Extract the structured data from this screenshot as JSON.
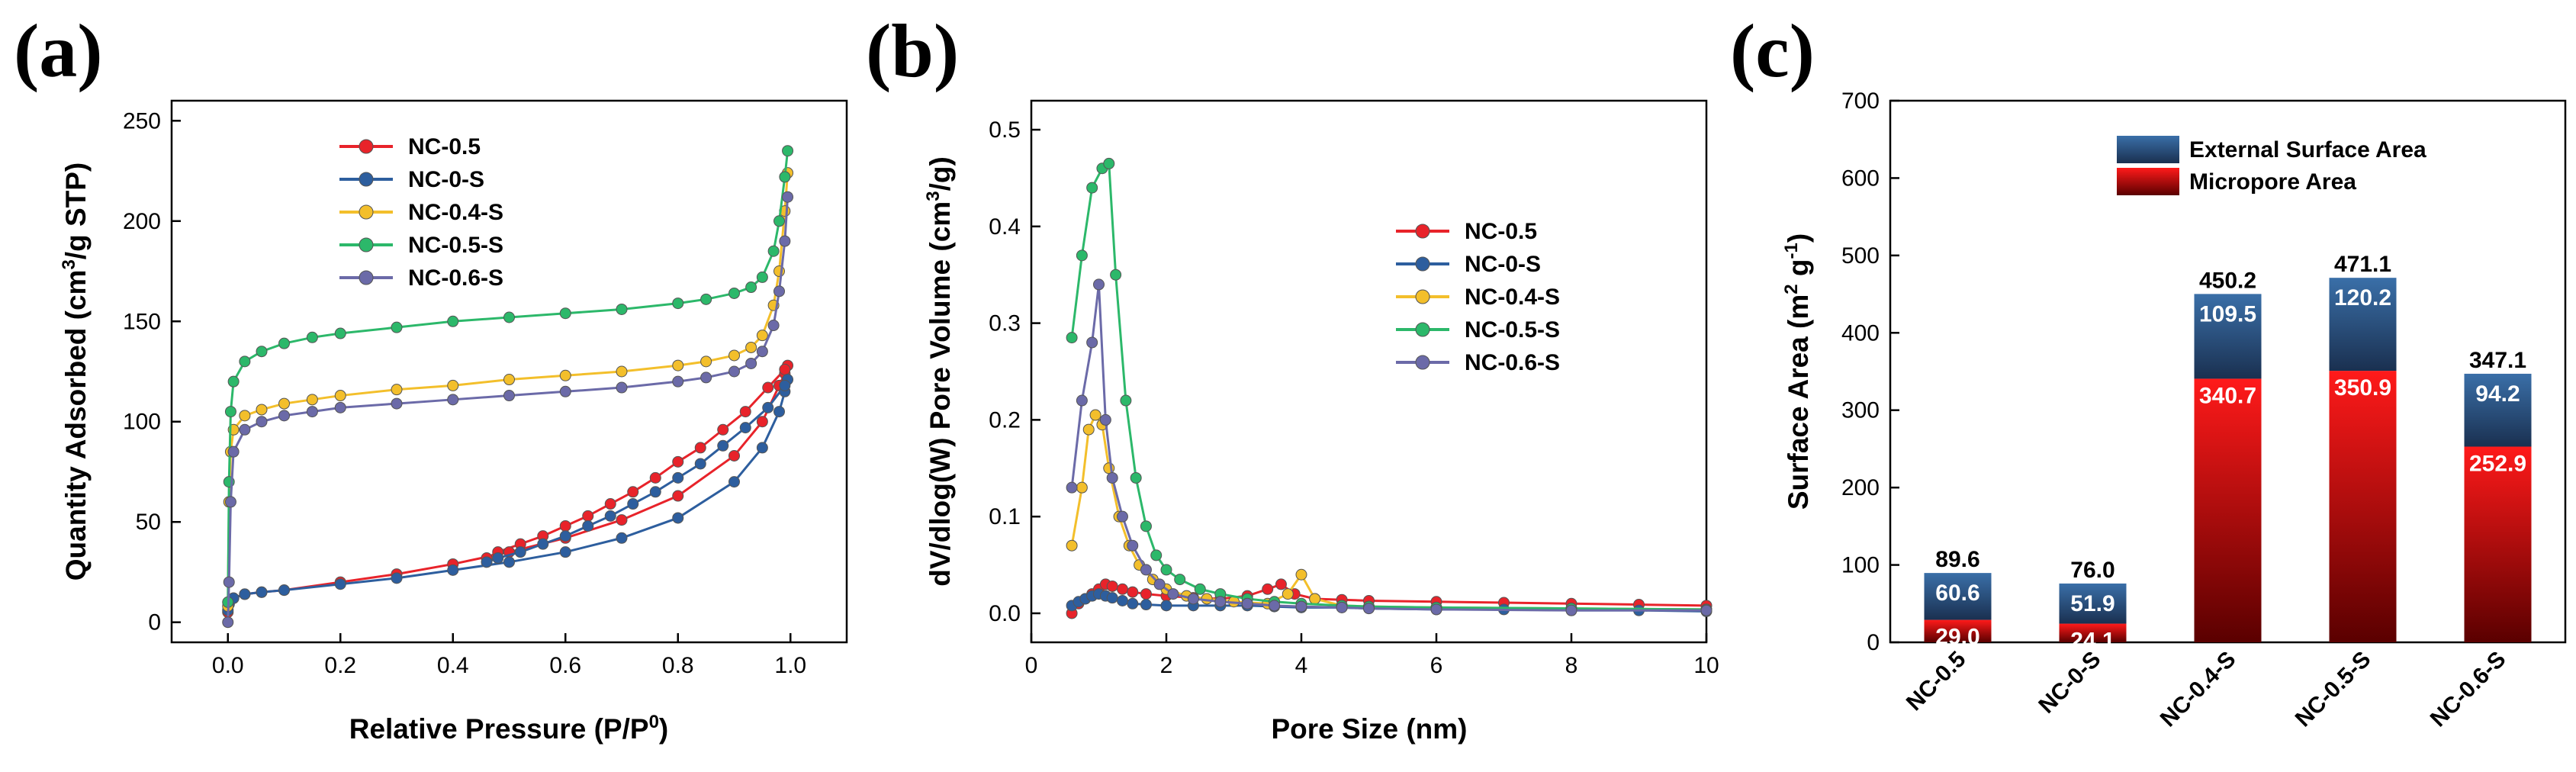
{
  "chart_data": [
    {
      "panel": "(a)",
      "type": "line",
      "xlabel": "Relative Pressure (P/P0)",
      "ylabel": "Quantity Adsorbed (cm3/g STP)",
      "xlim": [
        -0.1,
        1.1
      ],
      "ylim": [
        -10,
        260
      ],
      "xticks": [
        0.0,
        0.2,
        0.4,
        0.6,
        0.8,
        1.0
      ],
      "yticks": [
        0,
        50,
        100,
        150,
        200,
        250
      ],
      "xticklabels": [
        "0.0",
        "0.2",
        "0.4",
        "0.6",
        "0.8",
        "1.0"
      ],
      "yticklabels": [
        "0",
        "50",
        "100",
        "150",
        "200",
        "250"
      ],
      "legend_position": "top-center",
      "series": [
        {
          "name": "NC-0.5",
          "color": "#e8232a",
          "x": [
            0.0,
            0.002,
            0.01,
            0.03,
            0.06,
            0.1,
            0.2,
            0.3,
            0.4,
            0.5,
            0.6,
            0.7,
            0.8,
            0.9,
            0.95,
            0.98,
            0.99,
            0.995,
            0.99,
            0.96,
            0.92,
            0.88,
            0.84,
            0.8,
            0.76,
            0.72,
            0.68,
            0.64,
            0.6,
            0.56,
            0.52,
            0.48,
            0.46
          ],
          "y": [
            5,
            9,
            12,
            14,
            15,
            16,
            20,
            24,
            29,
            35,
            42,
            51,
            63,
            83,
            100,
            118,
            124,
            128,
            126,
            117,
            105,
            96,
            87,
            80,
            72,
            65,
            59,
            53,
            48,
            43,
            39,
            35,
            32
          ]
        },
        {
          "name": "NC-0-S",
          "color": "#2d5e9e",
          "x": [
            0.0,
            0.002,
            0.01,
            0.03,
            0.06,
            0.1,
            0.2,
            0.3,
            0.4,
            0.5,
            0.6,
            0.7,
            0.8,
            0.9,
            0.95,
            0.98,
            0.99,
            0.995,
            0.99,
            0.96,
            0.92,
            0.88,
            0.84,
            0.8,
            0.76,
            0.72,
            0.68,
            0.64,
            0.6,
            0.56,
            0.52,
            0.48,
            0.46
          ],
          "y": [
            6,
            9,
            12,
            14,
            15,
            16,
            19,
            22,
            26,
            30,
            35,
            42,
            52,
            70,
            87,
            105,
            115,
            121,
            118,
            107,
            97,
            88,
            79,
            72,
            65,
            59,
            53,
            48,
            43,
            39,
            35,
            32,
            30
          ]
        },
        {
          "name": "NC-0.4-S",
          "color": "#f3bf2b",
          "x": [
            0.0,
            0.002,
            0.005,
            0.01,
            0.03,
            0.06,
            0.1,
            0.15,
            0.2,
            0.3,
            0.4,
            0.5,
            0.6,
            0.7,
            0.8,
            0.85,
            0.9,
            0.93,
            0.95,
            0.97,
            0.98,
            0.99,
            0.995
          ],
          "y": [
            8,
            60,
            85,
            96,
            103,
            106,
            109,
            111,
            113,
            116,
            118,
            121,
            123,
            125,
            128,
            130,
            133,
            137,
            143,
            158,
            175,
            205,
            224
          ]
        },
        {
          "name": "NC-0.5-S",
          "color": "#2cb86a",
          "x": [
            0.0,
            0.002,
            0.005,
            0.01,
            0.03,
            0.06,
            0.1,
            0.15,
            0.2,
            0.3,
            0.4,
            0.5,
            0.6,
            0.7,
            0.8,
            0.85,
            0.9,
            0.93,
            0.95,
            0.97,
            0.98,
            0.99,
            0.995
          ],
          "y": [
            10,
            70,
            105,
            120,
            130,
            135,
            139,
            142,
            144,
            147,
            150,
            152,
            154,
            156,
            159,
            161,
            164,
            167,
            172,
            185,
            200,
            222,
            235
          ]
        },
        {
          "name": "NC-0.6-S",
          "color": "#6b6aa8",
          "x": [
            0.0,
            0.002,
            0.005,
            0.01,
            0.03,
            0.06,
            0.1,
            0.15,
            0.2,
            0.3,
            0.4,
            0.5,
            0.6,
            0.7,
            0.8,
            0.85,
            0.9,
            0.93,
            0.95,
            0.97,
            0.98,
            0.99,
            0.995
          ],
          "y": [
            0,
            20,
            60,
            85,
            96,
            100,
            103,
            105,
            107,
            109,
            111,
            113,
            115,
            117,
            120,
            122,
            125,
            129,
            135,
            148,
            165,
            190,
            212
          ]
        }
      ]
    },
    {
      "panel": "(b)",
      "type": "line",
      "xlabel": "Pore Size (nm)",
      "ylabel": "dV/dlog(W) Pore Volume (cm3/g)",
      "xlim": [
        0,
        10
      ],
      "ylim": [
        -0.03,
        0.53
      ],
      "xticks": [
        0,
        2,
        4,
        6,
        8,
        10
      ],
      "yticks": [
        0.0,
        0.1,
        0.2,
        0.3,
        0.4,
        0.5
      ],
      "xticklabels": [
        "0",
        "2",
        "4",
        "6",
        "8",
        "10"
      ],
      "yticklabels": [
        "0.0",
        "0.1",
        "0.2",
        "0.3",
        "0.4",
        "0.5"
      ],
      "legend_position": "center-right",
      "series": [
        {
          "name": "NC-0.5",
          "color": "#e8232a",
          "x": [
            0.6,
            0.7,
            0.8,
            0.9,
            1.0,
            1.1,
            1.2,
            1.35,
            1.5,
            1.7,
            2.0,
            2.4,
            2.8,
            3.2,
            3.5,
            3.7,
            3.9,
            4.2,
            4.6,
            5.0,
            6.0,
            7.0,
            8.0,
            9.0,
            10.0
          ],
          "y": [
            0.0,
            0.01,
            0.015,
            0.02,
            0.025,
            0.03,
            0.028,
            0.025,
            0.022,
            0.02,
            0.018,
            0.016,
            0.015,
            0.018,
            0.025,
            0.03,
            0.02,
            0.015,
            0.014,
            0.013,
            0.012,
            0.011,
            0.01,
            0.009,
            0.008
          ]
        },
        {
          "name": "NC-0-S",
          "color": "#2d5e9e",
          "x": [
            0.6,
            0.7,
            0.8,
            0.9,
            1.0,
            1.1,
            1.2,
            1.35,
            1.5,
            1.7,
            2.0,
            2.4,
            2.8,
            3.2,
            3.6,
            4.0,
            4.6,
            5.0,
            6.0,
            7.0,
            8.0,
            9.0,
            10.0
          ],
          "y": [
            0.008,
            0.012,
            0.015,
            0.018,
            0.02,
            0.018,
            0.016,
            0.013,
            0.01,
            0.009,
            0.008,
            0.008,
            0.008,
            0.008,
            0.007,
            0.006,
            0.006,
            0.005,
            0.004,
            0.004,
            0.003,
            0.003,
            0.002
          ]
        },
        {
          "name": "NC-0.4-S",
          "color": "#f3bf2b",
          "x": [
            0.6,
            0.75,
            0.85,
            0.95,
            1.05,
            1.15,
            1.3,
            1.45,
            1.6,
            1.8,
            2.0,
            2.3,
            2.6,
            3.0,
            3.5,
            3.8,
            4.0,
            4.2,
            4.6,
            5.0,
            6.0,
            8.0,
            10.0
          ],
          "y": [
            0.07,
            0.13,
            0.19,
            0.205,
            0.195,
            0.15,
            0.1,
            0.07,
            0.05,
            0.035,
            0.025,
            0.018,
            0.015,
            0.012,
            0.01,
            0.02,
            0.04,
            0.015,
            0.008,
            0.007,
            0.006,
            0.005,
            0.004
          ]
        },
        {
          "name": "NC-0.5-S",
          "color": "#2cb86a",
          "x": [
            0.6,
            0.75,
            0.9,
            1.05,
            1.15,
            1.25,
            1.4,
            1.55,
            1.7,
            1.85,
            2.0,
            2.2,
            2.5,
            2.8,
            3.2,
            3.6,
            4.0,
            4.6,
            5.0,
            6.0,
            8.0,
            10.0
          ],
          "y": [
            0.285,
            0.37,
            0.44,
            0.46,
            0.465,
            0.35,
            0.22,
            0.14,
            0.09,
            0.06,
            0.045,
            0.035,
            0.025,
            0.02,
            0.015,
            0.012,
            0.01,
            0.008,
            0.007,
            0.006,
            0.005,
            0.004
          ]
        },
        {
          "name": "NC-0.6-S",
          "color": "#6b6aa8",
          "x": [
            0.6,
            0.75,
            0.9,
            1.0,
            1.1,
            1.2,
            1.35,
            1.5,
            1.7,
            1.9,
            2.1,
            2.4,
            2.8,
            3.2,
            3.6,
            4.0,
            4.6,
            5.0,
            6.0,
            8.0,
            10.0
          ],
          "y": [
            0.13,
            0.22,
            0.28,
            0.34,
            0.2,
            0.14,
            0.1,
            0.07,
            0.045,
            0.03,
            0.02,
            0.015,
            0.012,
            0.01,
            0.008,
            0.007,
            0.006,
            0.005,
            0.004,
            0.003,
            0.003
          ]
        }
      ]
    },
    {
      "panel": "(c)",
      "type": "bar",
      "stacked": true,
      "ylabel": "Surface Area (m2 g-1)",
      "ylim": [
        0,
        700
      ],
      "yticks": [
        0,
        100,
        200,
        300,
        400,
        500,
        600,
        700
      ],
      "yticklabels": [
        "0",
        "100",
        "200",
        "300",
        "400",
        "500",
        "600",
        "700"
      ],
      "categories": [
        "NC-0.5",
        "NC-0-S",
        "NC-0.4-S",
        "NC-0.5-S",
        "NC-0.6-S"
      ],
      "legend_position": "top-right",
      "series": [
        {
          "name": "Micropore Area",
          "color_top": "#ff1a1a",
          "color_bottom": "#5a0000",
          "values": [
            29.0,
            24.1,
            340.7,
            350.9,
            252.9
          ],
          "labels": [
            "29.0",
            "24.1",
            "340.7",
            "350.9",
            "252.9"
          ]
        },
        {
          "name": "External Surface Area",
          "color_top": "#3a6fa8",
          "color_bottom": "#1a3050",
          "values": [
            60.6,
            51.9,
            109.5,
            120.2,
            94.2
          ],
          "labels": [
            "60.6",
            "51.9",
            "109.5",
            "120.2",
            "94.2"
          ]
        }
      ],
      "totals": [
        89.6,
        76.0,
        450.2,
        471.1,
        347.1
      ],
      "total_labels": [
        "89.6",
        "76.0",
        "450.2",
        "471.1",
        "347.1"
      ]
    }
  ],
  "panel_labels": {
    "a": "(a)",
    "b": "(b)",
    "c": "(c)"
  },
  "text": {
    "a_ylabel_pre": "Quantity Adsorbed (cm",
    "a_ylabel_sup": "3",
    "a_ylabel_post": "/g STP)",
    "a_xlabel_pre": "Relative Pressure (P/P",
    "a_xlabel_sup": "0",
    "a_xlabel_post": ")",
    "b_ylabel_pre": "dV/dlog(W) Pore Volume (cm",
    "b_ylabel_sup": "3",
    "b_ylabel_post": "/g)",
    "b_xlabel": "Pore Size (nm)",
    "c_ylabel_pre": "Surface Area (m",
    "c_ylabel_sup1": "2",
    "c_ylabel_mid": " g",
    "c_ylabel_sup2": "-1",
    "c_ylabel_post": ")"
  }
}
